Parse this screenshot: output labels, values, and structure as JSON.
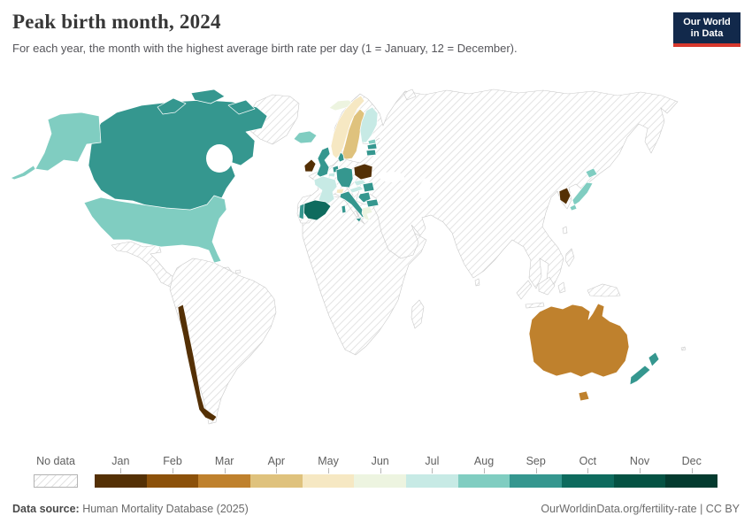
{
  "header": {
    "title": "Peak birth month, 2024",
    "subtitle": "For each year, the month with the highest average birth rate per day (1 = January, 12 = December).",
    "logo": {
      "line1": "Our World",
      "line2": "in Data",
      "bg": "#12294b",
      "accent": "#d7382d"
    }
  },
  "footer": {
    "source_label": "Data source:",
    "source_value": " Human Mortality Database (2025)",
    "credit": "OurWorldinData.org/fertility-rate | CC BY"
  },
  "chart_data": {
    "type": "choropleth_map",
    "title": "Peak birth month, 2024",
    "unit": "peak birth month (1 = January, 12 = December)",
    "year": 2024,
    "legend": {
      "no_data_label": "No data",
      "months": [
        "Jan",
        "Feb",
        "Mar",
        "Apr",
        "May",
        "Jun",
        "Jul",
        "Aug",
        "Sep",
        "Oct",
        "Nov",
        "Dec"
      ],
      "colors": {
        "Jan": "#543005",
        "Feb": "#8c510a",
        "Mar": "#bf812d",
        "Apr": "#dfc27d",
        "May": "#f6e8c3",
        "Jun": "#edf4e0",
        "Jul": "#c7eae5",
        "Aug": "#80cdc1",
        "Sep": "#35978f",
        "Oct": "#0e6b5e",
        "Nov": "#055243",
        "Dec": "#043b2f"
      }
    },
    "countries": [
      {
        "name": "Canada",
        "month": "Sep"
      },
      {
        "name": "United States",
        "month": "Aug"
      },
      {
        "name": "Chile",
        "month": "Jan"
      },
      {
        "name": "Iceland",
        "month": "Aug"
      },
      {
        "name": "Ireland",
        "month": "Jan"
      },
      {
        "name": "United Kingdom",
        "month": "Sep"
      },
      {
        "name": "Portugal",
        "month": "Sep"
      },
      {
        "name": "Spain",
        "month": "Oct"
      },
      {
        "name": "France",
        "month": "Jul"
      },
      {
        "name": "Belgium",
        "month": "Jul"
      },
      {
        "name": "Netherlands",
        "month": "Sep"
      },
      {
        "name": "Germany",
        "month": "Sep"
      },
      {
        "name": "Denmark",
        "month": "Sep"
      },
      {
        "name": "Norway",
        "month": "May"
      },
      {
        "name": "Svalbard",
        "month": "Jun"
      },
      {
        "name": "Sweden",
        "month": "Apr"
      },
      {
        "name": "Finland",
        "month": "Jul"
      },
      {
        "name": "Estonia",
        "month": "Aug"
      },
      {
        "name": "Latvia",
        "month": "Sep"
      },
      {
        "name": "Lithuania",
        "month": "Sep"
      },
      {
        "name": "Poland",
        "month": "Jan"
      },
      {
        "name": "Czechia",
        "month": "Jul"
      },
      {
        "name": "Austria",
        "month": "Jul"
      },
      {
        "name": "Switzerland",
        "month": "May"
      },
      {
        "name": "Hungary",
        "month": "Sep"
      },
      {
        "name": "Croatia",
        "month": "Sep"
      },
      {
        "name": "Italy",
        "month": "Sep"
      },
      {
        "name": "Greece",
        "month": "Jun"
      },
      {
        "name": "Bulgaria",
        "month": "Sep"
      },
      {
        "name": "South Korea",
        "month": "Jan"
      },
      {
        "name": "Japan",
        "month": "Aug"
      },
      {
        "name": "Australia",
        "month": "Mar"
      },
      {
        "name": "New Zealand",
        "month": "Sep"
      }
    ],
    "no_data_regions": [
      "Greenland",
      "Mexico",
      "Central America",
      "Caribbean",
      "South America except Chile",
      "Africa",
      "Russia",
      "Middle East",
      "Central Asia",
      "India",
      "China",
      "Southeast Asia",
      "Indonesia",
      "Philippines",
      "Papua New Guinea"
    ]
  }
}
